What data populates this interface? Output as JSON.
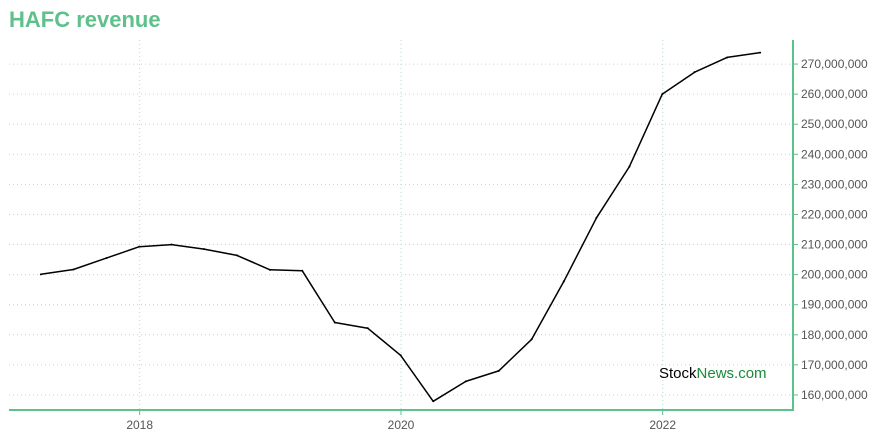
{
  "title": "HAFC revenue",
  "watermark": {
    "part1": "Stock",
    "part2": "News.com"
  },
  "colors": {
    "title": "#5ec08a",
    "axis": "#5ec08a",
    "grid": "#b8dccb",
    "line": "#000000"
  },
  "chart_data": {
    "type": "line",
    "title": "HAFC revenue",
    "xlabel": "",
    "ylabel": "",
    "xlim": [
      "2017-01-01",
      "2022-12-31"
    ],
    "ylim": [
      155000000,
      278000000
    ],
    "x_ticks": [
      "2018",
      "2020",
      "2022"
    ],
    "y_ticks": [
      160000000,
      170000000,
      180000000,
      190000000,
      200000000,
      210000000,
      220000000,
      230000000,
      240000000,
      250000000,
      260000000,
      270000000
    ],
    "y_tick_labels": [
      "160,000,000",
      "170,000,000",
      "180,000,000",
      "190,000,000",
      "200,000,000",
      "210,000,000",
      "220,000,000",
      "230,000,000",
      "240,000,000",
      "250,000,000",
      "260,000,000",
      "270,000,000"
    ],
    "grid": true,
    "y_axis_position": "right",
    "series": [
      {
        "x": [
          "2017-03-31",
          "2017-06-30",
          "2017-09-30",
          "2017-12-31",
          "2018-03-31",
          "2018-06-30",
          "2018-09-30",
          "2018-12-31",
          "2019-03-31",
          "2019-06-30",
          "2019-09-30",
          "2019-12-31",
          "2020-03-31",
          "2020-06-30",
          "2020-09-30",
          "2020-12-31",
          "2021-03-31",
          "2021-06-30",
          "2021-09-30",
          "2021-12-31",
          "2022-03-31",
          "2022-06-30",
          "2022-09-30"
        ],
        "values": [
          200100000,
          201700000,
          205500000,
          209300000,
          210000000,
          208500000,
          206400000,
          201600000,
          201300000,
          184100000,
          182200000,
          173200000,
          157900000,
          164500000,
          168000000,
          178500000,
          197800000,
          218900000,
          235900000,
          260000000,
          267300000,
          272200000,
          273800000
        ]
      }
    ]
  }
}
